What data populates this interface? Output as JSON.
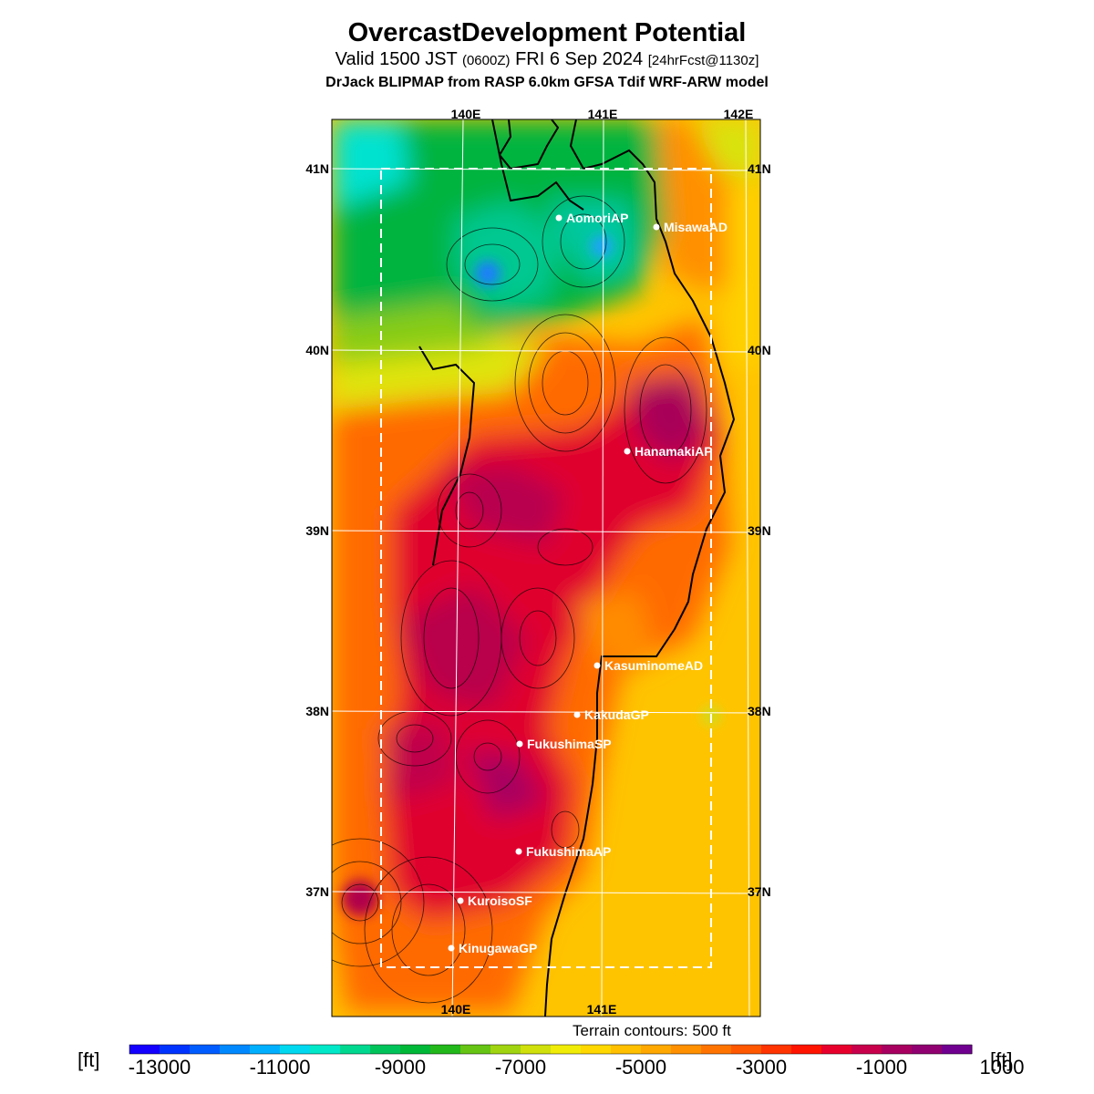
{
  "header": {
    "title": "OvercastDevelopment Potential",
    "valid_prefix": "Valid 1500 JST",
    "valid_utc": "(0600Z)",
    "valid_date": "FRI 6 Sep 2024",
    "forecast": "[24hrFcst@1130z]",
    "subtitle": "DrJack BLIPMAP from RASP 6.0km GFSA Tdif WRF-ARW model"
  },
  "map": {
    "lon_labels": [
      "140E",
      "141E",
      "142E"
    ],
    "lat_labels": [
      "41N",
      "40N",
      "39N",
      "38N",
      "37N"
    ],
    "stations": [
      {
        "name": "AomoriAP"
      },
      {
        "name": "MisawaAD"
      },
      {
        "name": "HanamakiAP"
      },
      {
        "name": "KasuminomeAD"
      },
      {
        "name": "KakudaGP"
      },
      {
        "name": "FukushimaSP"
      },
      {
        "name": "FukushimaAP"
      },
      {
        "name": "KuroisoSF"
      },
      {
        "name": "KinugawaGP"
      }
    ],
    "terrain_note": "Terrain contours: 500 ft"
  },
  "colorbar": {
    "unit": "[ft]",
    "labels": [
      "-13000",
      "-11000",
      "-9000",
      "-7000",
      "-5000",
      "-3000",
      "-1000",
      "1000"
    ],
    "colors": [
      "#1400ff",
      "#0033ff",
      "#005cff",
      "#0088ff",
      "#00b0ff",
      "#00d8f0",
      "#00e8c8",
      "#00d890",
      "#00c45a",
      "#00b838",
      "#22b81c",
      "#66c414",
      "#a0d410",
      "#d0e00c",
      "#f0ec08",
      "#ffd800",
      "#ffc000",
      "#ffa800",
      "#ff9000",
      "#ff7400",
      "#ff5800",
      "#ff3400",
      "#ff1400",
      "#e8002c",
      "#c8004c",
      "#a80060",
      "#900070",
      "#700090"
    ]
  }
}
